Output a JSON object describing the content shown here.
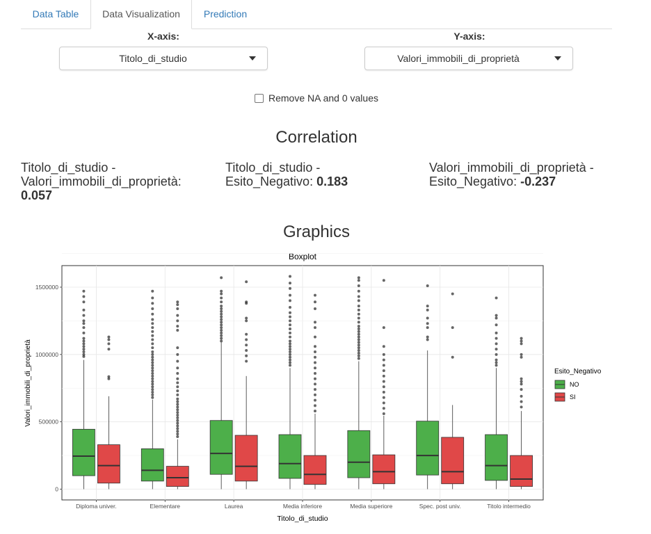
{
  "tabs": [
    {
      "label": "Data Table"
    },
    {
      "label": "Data Visualization"
    },
    {
      "label": "Prediction"
    }
  ],
  "controls": {
    "x_axis_label": "X-axis:",
    "x_axis_value": "Titolo_di_studio",
    "y_axis_label": "Y-axis:",
    "y_axis_value": "Valori_immobili_di_proprietà",
    "remove_na_label": "Remove NA and 0 values",
    "remove_na_checked": false
  },
  "correlation": {
    "title": "Correlation",
    "pairs": [
      {
        "name": "Titolo_di_studio - Valori_immobili_di_proprietà:",
        "value": "0.057"
      },
      {
        "name": "Titolo_di_studio - Esito_Negativo:",
        "value": "0.183"
      },
      {
        "name": "Valori_immobili_di_proprietà - Esito_Negativo:",
        "value": "-0.237"
      }
    ]
  },
  "graphics": {
    "title": "Graphics"
  },
  "chart_data": {
    "type": "boxplot",
    "title": "Boxplot",
    "xlabel": "Titolo_di_studio",
    "ylabel": "Valori_immobili_di_proprietà",
    "ylim": [
      -80000,
      1660000
    ],
    "yticks": [
      0,
      500000,
      1000000,
      1500000
    ],
    "ytick_labels": [
      "0",
      "500000",
      "1000000",
      "1500000"
    ],
    "categories": [
      "Diploma univer.",
      "Elementare",
      "Laurea",
      "Media inferiore",
      "Media superiore",
      "Spec. post univ.",
      "Titolo intermedio"
    ],
    "legend_title": "Esito_Negativo",
    "legend_position": "right",
    "grid": true,
    "series": [
      {
        "name": "NO",
        "color": "#4daf4a",
        "boxes": [
          {
            "whisker_low": 0,
            "q1": 100000,
            "median": 245000,
            "q3": 445000,
            "whisker_high": 960000,
            "outliers": [
              985000,
              1000000,
              1020000,
              1040000,
              1060000,
              1080000,
              1100000,
              1120000,
              1160000,
              1200000,
              1230000,
              1250000,
              1290000,
              1330000,
              1390000,
              1430000,
              1470000
            ]
          },
          {
            "whisker_low": 0,
            "q1": 60000,
            "median": 140000,
            "q3": 300000,
            "whisker_high": 665000,
            "outliers": [
              680000,
              700000,
              720000,
              740000,
              760000,
              780000,
              800000,
              820000,
              840000,
              860000,
              880000,
              900000,
              920000,
              940000,
              960000,
              980000,
              1000000,
              1020000,
              1050000,
              1080000,
              1110000,
              1140000,
              1170000,
              1200000,
              1230000,
              1260000,
              1300000,
              1340000,
              1380000,
              1420000,
              1470000
            ]
          },
          {
            "whisker_low": 0,
            "q1": 110000,
            "median": 265000,
            "q3": 510000,
            "whisker_high": 1090000,
            "outliers": [
              1100000,
              1120000,
              1140000,
              1160000,
              1180000,
              1200000,
              1220000,
              1240000,
              1260000,
              1280000,
              1300000,
              1320000,
              1340000,
              1360000,
              1390000,
              1420000,
              1450000,
              1470000,
              1570000
            ]
          },
          {
            "whisker_low": 0,
            "q1": 80000,
            "median": 190000,
            "q3": 405000,
            "whisker_high": 900000,
            "outliers": [
              920000,
              940000,
              960000,
              980000,
              1000000,
              1020000,
              1040000,
              1060000,
              1080000,
              1100000,
              1130000,
              1160000,
              1190000,
              1220000,
              1250000,
              1280000,
              1310000,
              1350000,
              1400000,
              1440000,
              1490000,
              1530000,
              1580000
            ]
          },
          {
            "whisker_low": 0,
            "q1": 85000,
            "median": 200000,
            "q3": 435000,
            "whisker_high": 950000,
            "outliers": [
              970000,
              990000,
              1010000,
              1030000,
              1050000,
              1070000,
              1090000,
              1110000,
              1130000,
              1150000,
              1170000,
              1190000,
              1210000,
              1240000,
              1270000,
              1300000,
              1330000,
              1360000,
              1400000,
              1430000,
              1470000,
              1510000,
              1550000,
              1570000
            ]
          },
          {
            "whisker_low": 0,
            "q1": 105000,
            "median": 250000,
            "q3": 505000,
            "whisker_high": 1030000,
            "outliers": [
              1110000,
              1130000,
              1200000,
              1230000,
              1270000,
              1330000,
              1360000,
              1510000
            ]
          },
          {
            "whisker_low": 0,
            "q1": 65000,
            "median": 175000,
            "q3": 405000,
            "whisker_high": 900000,
            "outliers": [
              920000,
              940000,
              960000,
              1000000,
              1040000,
              1080000,
              1120000,
              1160000,
              1220000,
              1270000,
              1290000,
              1420000
            ]
          }
        ]
      },
      {
        "name": "SI",
        "color": "#e04848",
        "boxes": [
          {
            "whisker_low": 0,
            "q1": 45000,
            "median": 175000,
            "q3": 330000,
            "whisker_high": 690000,
            "outliers": [
              820000,
              835000,
              1040000,
              1080000,
              1110000,
              1130000
            ]
          },
          {
            "whisker_low": 0,
            "q1": 20000,
            "median": 85000,
            "q3": 170000,
            "whisker_high": 370000,
            "outliers": [
              390000,
              410000,
              430000,
              450000,
              470000,
              490000,
              510000,
              530000,
              550000,
              570000,
              590000,
              610000,
              630000,
              650000,
              670000,
              700000,
              730000,
              760000,
              790000,
              820000,
              860000,
              900000,
              950000,
              1000000,
              1050000,
              1180000,
              1210000,
              1250000,
              1290000,
              1340000,
              1370000,
              1390000
            ]
          },
          {
            "whisker_low": 0,
            "q1": 60000,
            "median": 170000,
            "q3": 400000,
            "whisker_high": 840000,
            "outliers": [
              950000,
              990000,
              1030000,
              1070000,
              1110000,
              1150000,
              1250000,
              1270000,
              1380000,
              1390000,
              1540000
            ]
          },
          {
            "whisker_low": 0,
            "q1": 35000,
            "median": 110000,
            "q3": 250000,
            "whisker_high": 560000,
            "outliers": [
              580000,
              620000,
              660000,
              700000,
              740000,
              780000,
              820000,
              860000,
              900000,
              940000,
              980000,
              1020000,
              1060000,
              1130000,
              1200000,
              1240000,
              1340000,
              1390000,
              1440000
            ]
          },
          {
            "whisker_low": 0,
            "q1": 40000,
            "median": 130000,
            "q3": 255000,
            "whisker_high": 545000,
            "outliers": [
              560000,
              600000,
              640000,
              680000,
              720000,
              760000,
              800000,
              840000,
              880000,
              920000,
              960000,
              1000000,
              1060000,
              1200000,
              1550000
            ]
          },
          {
            "whisker_low": 0,
            "q1": 40000,
            "median": 130000,
            "q3": 385000,
            "whisker_high": 625000,
            "outliers": [
              980000,
              1200000,
              1450000
            ]
          },
          {
            "whisker_low": 0,
            "q1": 20000,
            "median": 75000,
            "q3": 250000,
            "whisker_high": 580000,
            "outliers": [
              610000,
              650000,
              690000,
              740000,
              780000,
              800000,
              820000,
              980000,
              1000000,
              1080000,
              1100000,
              1120000
            ]
          }
        ]
      }
    ]
  }
}
